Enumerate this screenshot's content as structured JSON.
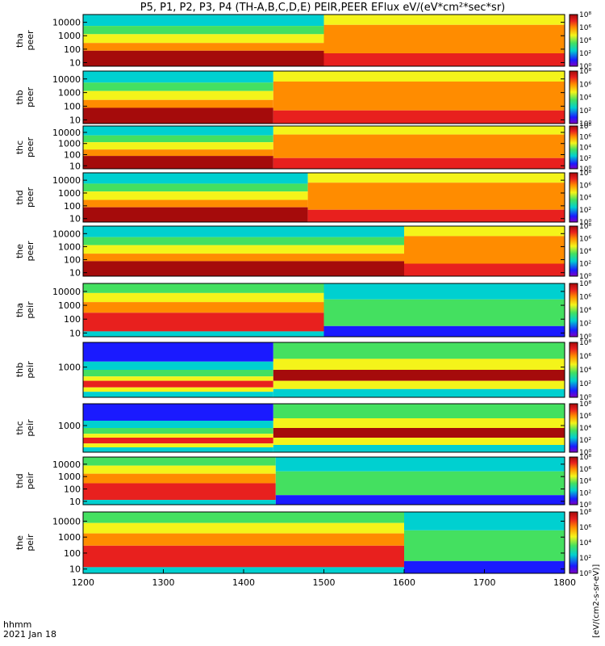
{
  "title": "P5, P1, P2, P3, P4 (TH-A,B,C,D,E) PEIR,PEER EFlux eV/(eV*cm²*sec*sr)",
  "footer": {
    "row1": "hhmm",
    "row2": "2021 Jan 18"
  },
  "colorbar_unit": "[eV/(cm2-s-sr-eV)]",
  "colors": {
    "low": "#1a1aff",
    "mid": "#00d0d0",
    "green": "#44e060",
    "yellow": "#f4f41a",
    "orange": "#ff8c00",
    "red": "#e8201e",
    "dark": "#a50b0b"
  },
  "chart_data": {
    "type": "heatmap",
    "x_axis": {
      "range": [
        1200,
        1800
      ],
      "ticks": [
        1200,
        1300,
        1400,
        1500,
        1600,
        1700,
        1800
      ]
    },
    "colorbar_ticks": [
      "10⁰",
      "10²",
      "10⁴",
      "10⁶",
      "10⁸"
    ],
    "panels": [
      {
        "name": "tha peer",
        "y_ticks": [
          "10000",
          "1000",
          "100",
          "10"
        ],
        "scale": "log",
        "y_range": [
          5,
          30000
        ]
      },
      {
        "name": "thb peer",
        "y_ticks": [
          "10000",
          "1000",
          "100",
          "10"
        ],
        "scale": "log",
        "y_range": [
          5,
          30000
        ]
      },
      {
        "name": "thc peer",
        "y_ticks": [
          "10000",
          "1000",
          "100",
          "10"
        ],
        "scale": "log",
        "y_range": [
          5,
          30000
        ]
      },
      {
        "name": "thd peer",
        "y_ticks": [
          "10000",
          "1000",
          "100",
          "10"
        ],
        "scale": "log",
        "y_range": [
          5,
          30000
        ]
      },
      {
        "name": "the peer",
        "y_ticks": [
          "10000",
          "1000",
          "100",
          "10"
        ],
        "scale": "log",
        "y_range": [
          5,
          30000
        ]
      },
      {
        "name": "tha peir",
        "y_ticks": [
          "10000",
          "1000",
          "100",
          "10"
        ],
        "scale": "log",
        "y_range": [
          5,
          30000
        ]
      },
      {
        "name": "thb peir",
        "y_ticks": [
          "1000"
        ],
        "scale": "log",
        "y_range": [
          5,
          30000
        ]
      },
      {
        "name": "thc peir",
        "y_ticks": [
          "1000"
        ],
        "scale": "log",
        "y_range": [
          5,
          30000
        ]
      },
      {
        "name": "thd peir",
        "y_ticks": [
          "10000",
          "1000",
          "100",
          "10"
        ],
        "scale": "log",
        "y_range": [
          5,
          30000
        ]
      },
      {
        "name": "the peir",
        "y_ticks": [
          "10000",
          "1000",
          "100",
          "10"
        ],
        "scale": "log",
        "y_range": [
          5,
          30000
        ]
      }
    ]
  }
}
